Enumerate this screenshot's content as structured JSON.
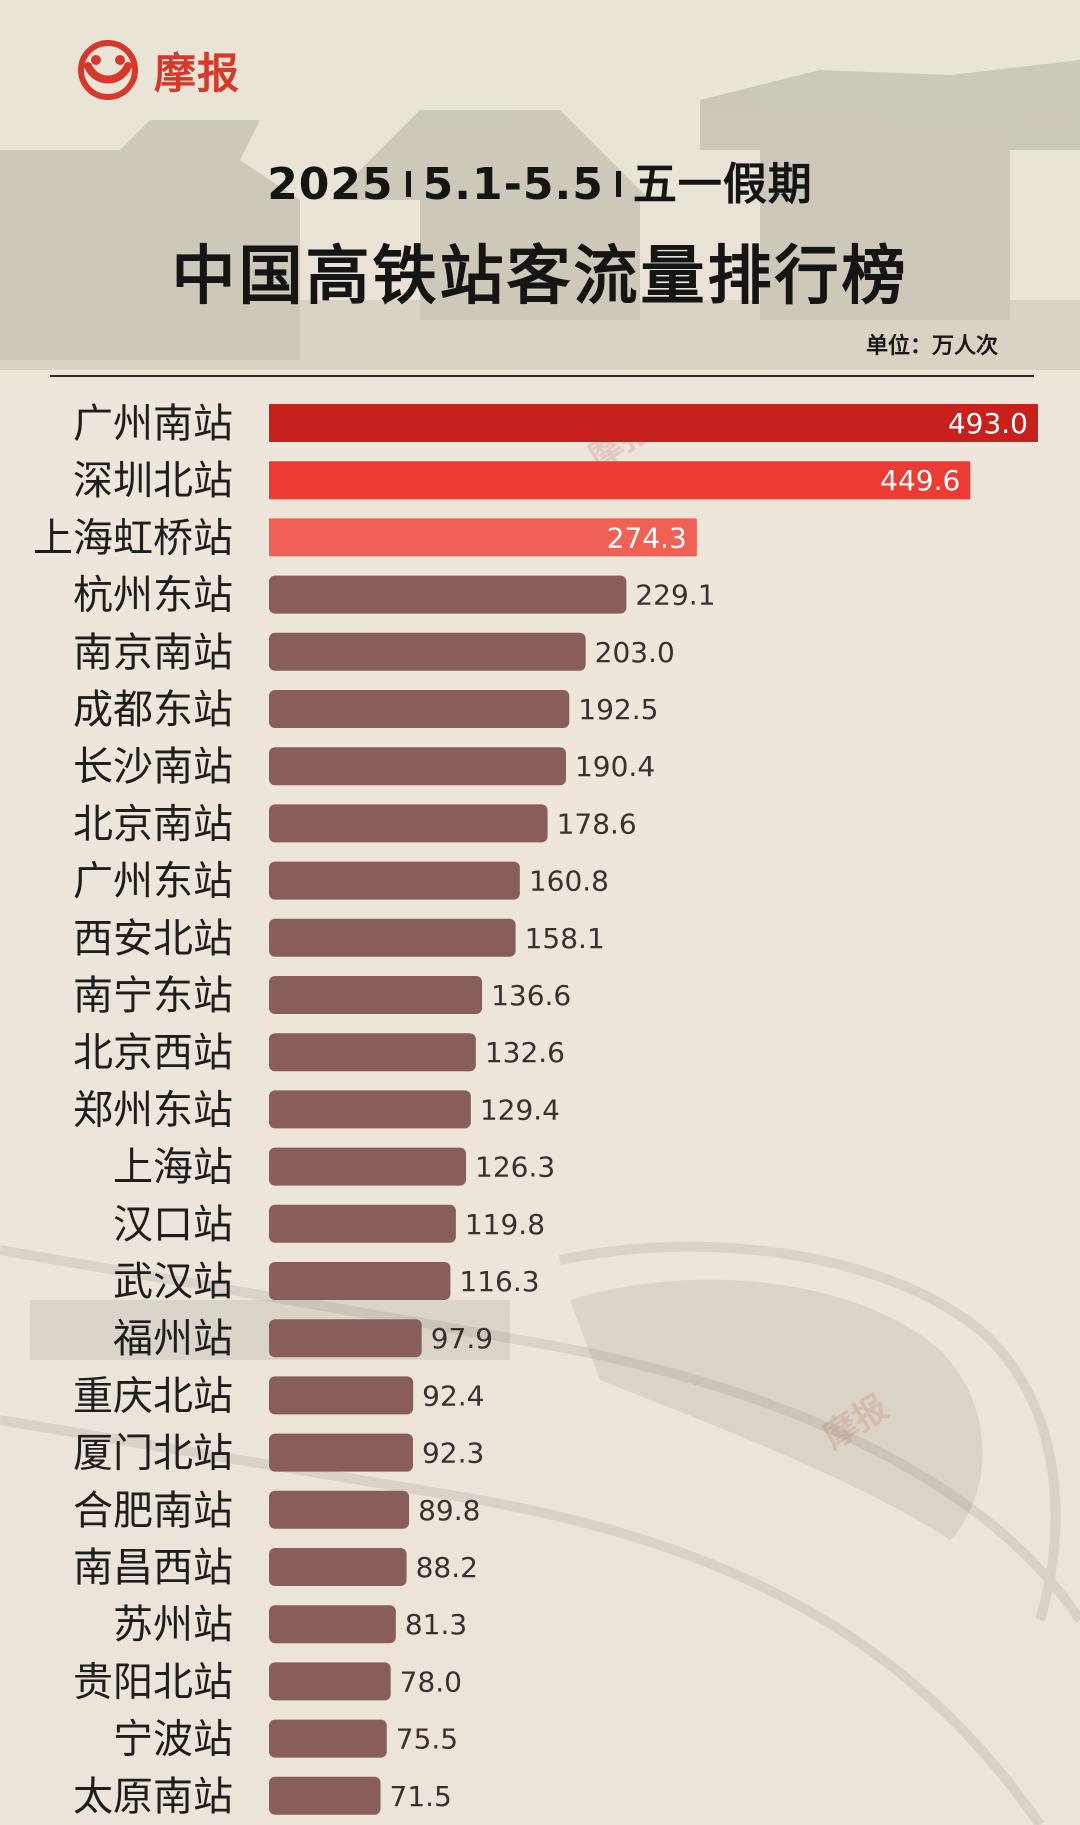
{
  "brand": {
    "name": "摩报",
    "logo_icon": "moobao-logo-icon",
    "color": "#d6382b"
  },
  "header": {
    "year": "2025",
    "dates": "5.1-5.5",
    "holiday": "五一假期",
    "title": "中国高铁站客流量排行榜",
    "unit": "单位：万人次"
  },
  "watermarks": [
    "摩报",
    "摩报"
  ],
  "colors": {
    "top1": "#c8201c",
    "top2": "#ec3b33",
    "top3": "#f06055",
    "default": "#8a5d5d"
  },
  "chart_data": {
    "type": "bar",
    "orientation": "horizontal",
    "title": "中国高铁站客流量排行榜",
    "subtitle": "2025 | 5.1-5.5 | 五一假期",
    "unit": "单位：万人次",
    "categories": [
      "广州南站",
      "深圳北站",
      "上海虹桥站",
      "杭州东站",
      "南京南站",
      "成都东站",
      "长沙南站",
      "北京南站",
      "广州东站",
      "西安北站",
      "南宁东站",
      "北京西站",
      "郑州东站",
      "上海站",
      "汉口站",
      "武汉站",
      "福州站",
      "重庆北站",
      "厦门北站",
      "合肥南站",
      "南昌西站",
      "苏州站",
      "贵阳北站",
      "宁波站",
      "太原南站"
    ],
    "values": [
      493.0,
      449.6,
      274.3,
      229.1,
      203.0,
      192.5,
      190.4,
      178.6,
      160.8,
      158.1,
      136.6,
      132.6,
      129.4,
      126.3,
      119.8,
      116.3,
      97.9,
      92.4,
      92.3,
      89.8,
      88.2,
      81.3,
      78.0,
      75.5,
      71.5
    ],
    "labels": [
      "493.0",
      "449.6",
      "274.3",
      "229.1",
      "203.0",
      "192.5",
      "190.4",
      "178.6",
      "160.8",
      "158.1",
      "136.6",
      "132.6",
      "129.4",
      "126.3",
      "119.8",
      "116.3",
      "97.9",
      "92.4",
      "92.3",
      "89.8",
      "88.2",
      "81.3",
      "78.0",
      "75.5",
      "71.5"
    ],
    "xlim": [
      0,
      493.0
    ],
    "grid": false,
    "legend": "none"
  }
}
